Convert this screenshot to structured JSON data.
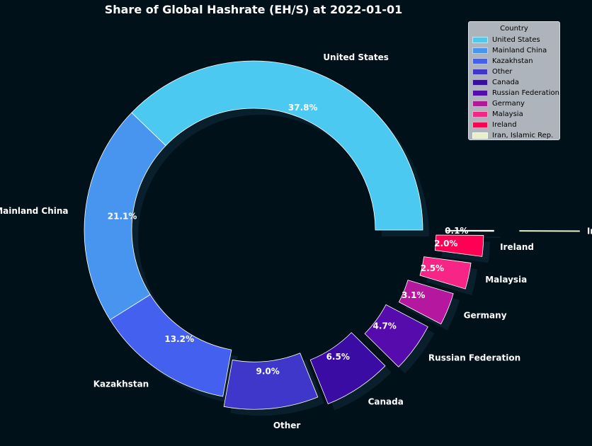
{
  "chart_data": {
    "type": "pie",
    "style": "donut",
    "title": "Share of Global Hashrate (EH/S) at 2022-01-01",
    "categories": [
      "United States",
      "Mainland China",
      "Kazakhstan",
      "Other",
      "Canada",
      "Russian Federation",
      "Germany",
      "Malaysia",
      "Ireland",
      "Iran, Islamic Rep."
    ],
    "values": [
      37.8,
      21.1,
      13.2,
      9.0,
      6.5,
      4.7,
      3.1,
      2.5,
      2.0,
      0.1
    ],
    "value_labels": [
      "37.8%",
      "21.1%",
      "13.2%",
      "9.0%",
      "6.5%",
      "4.7%",
      "3.1%",
      "2.5%",
      "2.0%",
      "0.1%"
    ],
    "colors": [
      "#4cc9f0",
      "#4895ef",
      "#4361ee",
      "#3f37c9",
      "#3a0ca3",
      "#560bad",
      "#b5179e",
      "#f72585",
      "#ff0054",
      "#e9edc9"
    ],
    "explode": [
      0,
      0,
      0,
      0.06,
      0.12,
      0.18,
      0.24,
      0.3,
      0.36,
      0.42
    ],
    "background": "#00111a",
    "legend": {
      "title": "Country",
      "placement": "top-right"
    }
  }
}
